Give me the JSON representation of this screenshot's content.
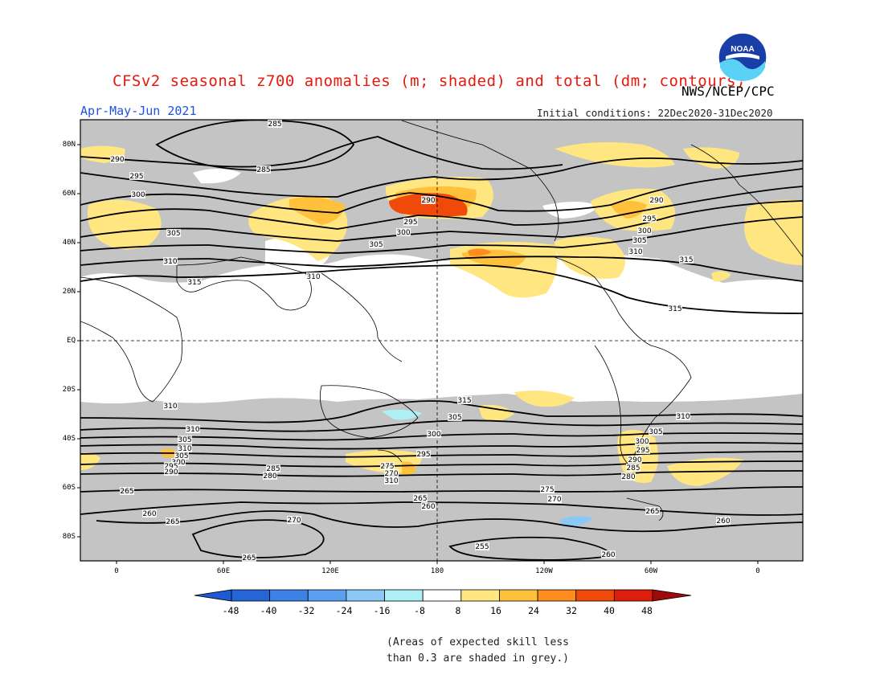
{
  "header": {
    "title": "CFSv2 seasonal z700 anomalies (m; shaded) and total (dm; contours)",
    "agency": "NWS/NCEP/CPC",
    "season": "Apr-May-Jun 2021",
    "initial_conditions": "Initial conditions: 22Dec2020-31Dec2020",
    "logo_text": "NOAA"
  },
  "map": {
    "lat_labels": [
      "80N",
      "60N",
      "40N",
      "20N",
      "EQ",
      "20S",
      "40S",
      "60S",
      "80S"
    ],
    "lon_labels": [
      "0",
      "60E",
      "120E",
      "180",
      "120W",
      "60W",
      "0"
    ],
    "contour_labels": [
      "285",
      "285",
      "290",
      "295",
      "300",
      "305",
      "310",
      "315",
      "290",
      "295",
      "300",
      "305",
      "310",
      "290",
      "295",
      "300",
      "305",
      "310",
      "315",
      "315",
      "310",
      "315",
      "310",
      "305",
      "300",
      "295",
      "310",
      "305",
      "310",
      "305",
      "300",
      "295",
      "290",
      "285",
      "280",
      "275",
      "270",
      "310",
      "305",
      "300",
      "295",
      "290",
      "285",
      "280",
      "265",
      "275",
      "270",
      "265",
      "260",
      "260",
      "265",
      "270",
      "265",
      "260",
      "265",
      "255",
      "260",
      "275",
      "270"
    ],
    "anomaly_colors": {
      "positive_8_16": "#ffe680",
      "positive_16_24": "#ffc03c",
      "positive_24_32": "#ff8c1e",
      "positive_32_40": "#f04a0a",
      "negative_8_16": "#aef0f5",
      "negative_16_24": "#8cc8f5",
      "low_skill_grey": "#c4c4c4"
    }
  },
  "colorbar": {
    "labels": [
      "-48",
      "-40",
      "-32",
      "-24",
      "-16",
      "-8",
      "8",
      "16",
      "24",
      "32",
      "40",
      "48"
    ],
    "colors": [
      "#2466d6",
      "#3c82e6",
      "#5aa0f0",
      "#8cc8f5",
      "#aef0f5",
      "#ffffff",
      "#ffe680",
      "#ffc03c",
      "#ff8c1e",
      "#f04a0a",
      "#dc1e0a"
    ],
    "left_arrow_color": "#1e5ad2",
    "right_arrow_color": "#a00a0a"
  },
  "footnote": {
    "line1": "(Areas of expected skill less",
    "line2": "than 0.3 are shaded in grey.)"
  }
}
